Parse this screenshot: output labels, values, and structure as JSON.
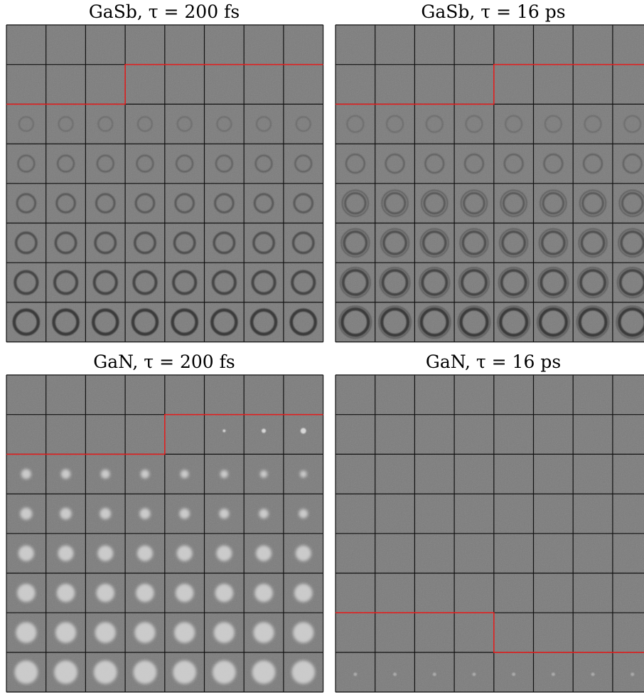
{
  "panels": [
    {
      "title": "GaSb, τ = 200 fs"
    },
    {
      "title": "GaSb, τ = 16 ps"
    },
    {
      "title": "GaN, τ = 200 fs"
    },
    {
      "title": "GaN, τ = 16 ps"
    }
  ]
}
